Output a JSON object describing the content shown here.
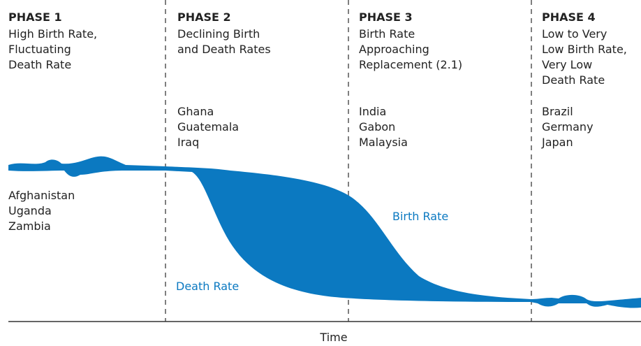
{
  "phases": [
    {
      "title": "PHASE 1",
      "description": [
        "High Birth Rate,",
        "Fluctuating",
        "Death Rate"
      ],
      "countries": [
        "Afghanistan",
        "Uganda",
        "Zambia"
      ]
    },
    {
      "title": "PHASE 2",
      "description": [
        "Declining Birth",
        "and Death Rates"
      ],
      "countries": [
        "Ghana",
        "Guatemala",
        "Iraq"
      ]
    },
    {
      "title": "PHASE 3",
      "description": [
        "Birth Rate",
        "Approaching",
        "Replacement (2.1)"
      ],
      "countries": [
        "India",
        "Gabon",
        "Malaysia"
      ]
    },
    {
      "title": "PHASE 4",
      "description": [
        "Low to Very",
        "Low Birth Rate,",
        "Very Low",
        "Death Rate"
      ],
      "countries": [
        "Brazil",
        "Germany",
        "Japan"
      ]
    }
  ],
  "labels": {
    "birth_rate": "Birth Rate",
    "death_rate": "Death Rate",
    "x_axis": "Time"
  }
}
